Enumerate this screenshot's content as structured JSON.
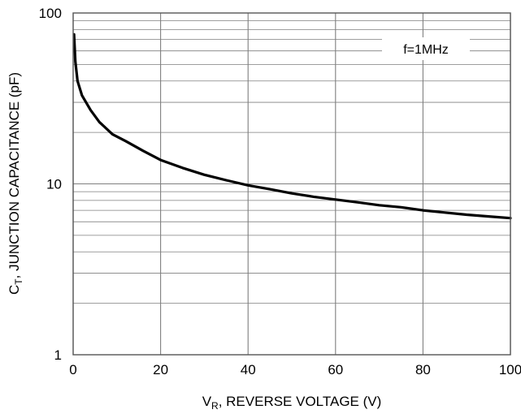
{
  "chart_data": {
    "type": "line",
    "title": "",
    "xlabel": {
      "main": "V",
      "sub": "R",
      "rest": ", REVERSE VOLTAGE (V)"
    },
    "ylabel": {
      "main": "C",
      "sub": "T",
      "rest": ", JUNCTION CAPACITANCE (pF)"
    },
    "x_scale": "linear",
    "y_scale": "log",
    "xlim": [
      0,
      100
    ],
    "ylim": [
      1,
      100
    ],
    "x_ticks": [
      0,
      20,
      40,
      60,
      80,
      100
    ],
    "x_tick_labels": [
      "0",
      "20",
      "40",
      "60",
      "80",
      "100"
    ],
    "y_ticks": [
      1,
      10,
      100
    ],
    "y_tick_labels": [
      "1",
      "10",
      "100"
    ],
    "grid": true,
    "annotation": "f=1MHz",
    "line_color": "#000000",
    "grid_color": "#7f7f7f",
    "series": [
      {
        "x": [
          0.2,
          0.5,
          1,
          2,
          4,
          6,
          9,
          12,
          16,
          20,
          25,
          30,
          35,
          40,
          45,
          50,
          55,
          60,
          65,
          70,
          75,
          80,
          85,
          90,
          95,
          100
        ],
        "y": [
          75,
          52,
          40,
          33,
          27,
          23,
          19.5,
          17.8,
          15.6,
          13.8,
          12.4,
          11.3,
          10.5,
          9.8,
          9.3,
          8.8,
          8.4,
          8.1,
          7.8,
          7.5,
          7.3,
          7.0,
          6.8,
          6.6,
          6.45,
          6.3
        ]
      }
    ]
  }
}
